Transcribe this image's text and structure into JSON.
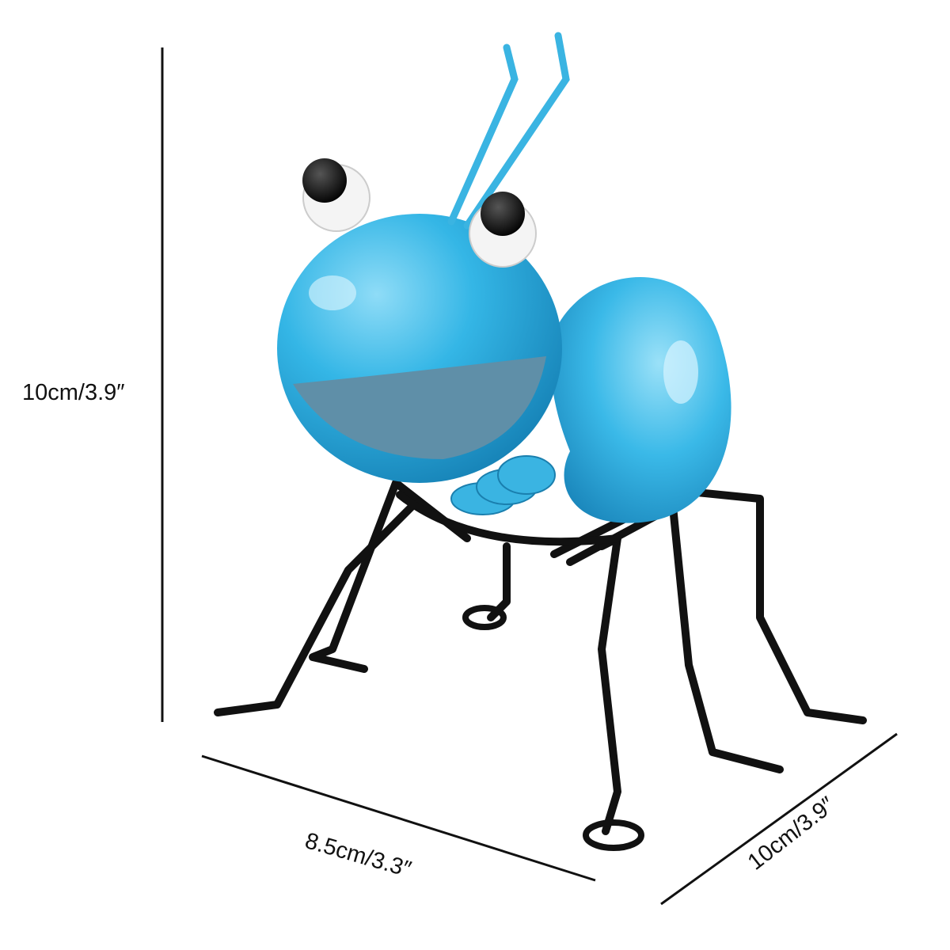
{
  "dimensions": {
    "height": "10cm/3.9″",
    "width": "8.5cm/3.3″",
    "depth": "10cm/3.9″"
  },
  "colors": {
    "body_blue": "#34b6e6",
    "body_shadow": "#1e8fc2",
    "mouth_grey": "#5f8fa8",
    "legs_black": "#111111",
    "eye_white": "#f4f4f4"
  },
  "icons": {
    "product": "metal-ant-figurine"
  }
}
